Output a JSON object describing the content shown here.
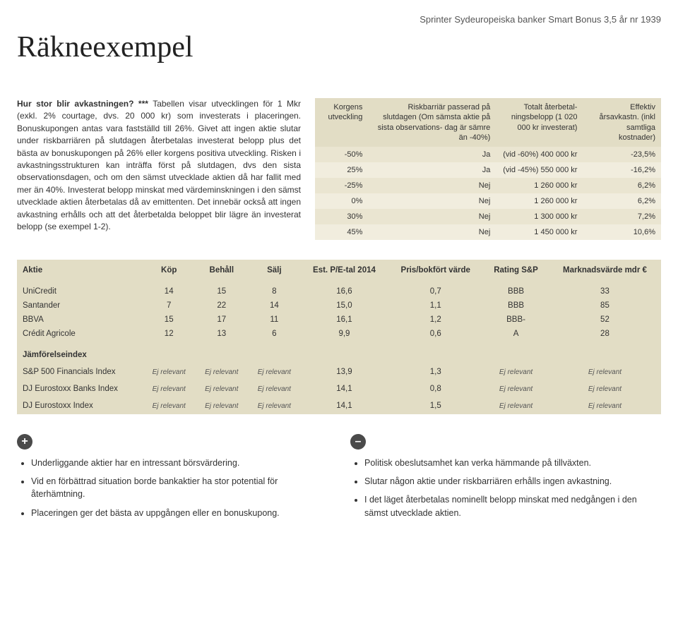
{
  "header_tag": "Sprinter Sydeuropeiska banker Smart Bonus 3,5 år nr 1939",
  "title": "Räkneexempel",
  "intro": {
    "heading": "Hur stor blir avkastningen? ***",
    "body": "Tabellen visar utvecklingen för 1 Mkr (exkl. 2% courtage, dvs. 20 000 kr) som investerats i placeringen. Bonuskupongen antas vara fastställd till 26%. Givet att ingen aktie slutar under riskbarriären på slutdagen återbetalas investerat belopp plus det bästa av bonuskupongen på 26% eller korgens positiva utveckling. Risken i avkastningsstrukturen kan inträffa först på slutdagen, dvs den sista observationsdagen, och om den sämst utvecklade aktien då har fallit med mer än 40%. Investerat belopp minskat med värdeminskningen i den sämst utvecklade aktien återbetalas då av emittenten. Det innebär också att ingen avkastning erhålls och att det återbetalda beloppet blir lägre än investerat belopp (se exempel 1-2)."
  },
  "yield_table": {
    "headers": {
      "c1": "Korgens utveckling",
      "c2": "Riskbarriär passerad på slutdagen (Om sämsta aktie på sista observations- dag är sämre än -40%)",
      "c3": "Totalt återbetal- ningsbelopp (1 020 000 kr investerat)",
      "c4": "Effektiv årsavkastn. (inkl samtliga kostnader)"
    },
    "rows": [
      {
        "c1": "-50%",
        "c2": "Ja",
        "c3": "(vid -60%) 400 000 kr",
        "c4": "-23,5%"
      },
      {
        "c1": "25%",
        "c2": "Ja",
        "c3": "(vid -45%) 550 000 kr",
        "c4": "-16,2%"
      },
      {
        "c1": "-25%",
        "c2": "Nej",
        "c3": "1 260 000 kr",
        "c4": "6,2%"
      },
      {
        "c1": "0%",
        "c2": "Nej",
        "c3": "1 260 000 kr",
        "c4": "6,2%"
      },
      {
        "c1": "30%",
        "c2": "Nej",
        "c3": "1 300 000 kr",
        "c4": "7,2%"
      },
      {
        "c1": "45%",
        "c2": "Nej",
        "c3": "1 450 000 kr",
        "c4": "10,6%"
      }
    ]
  },
  "stocks": {
    "headers": {
      "c1": "Aktie",
      "c2": "Köp",
      "c3": "Behåll",
      "c4": "Sälj",
      "c5": "Est. P/E-tal 2014",
      "c6": "Pris/bokfört värde",
      "c7": "Rating S&P",
      "c8": "Marknadsvärde mdr €"
    },
    "rows": [
      {
        "name": "UniCredit",
        "c2": "14",
        "c3": "15",
        "c4": "8",
        "c5": "16,6",
        "c6": "0,7",
        "c7": "BBB",
        "c8": "33"
      },
      {
        "name": "Santander",
        "c2": "7",
        "c3": "22",
        "c4": "14",
        "c5": "15,0",
        "c6": "1,1",
        "c7": "BBB",
        "c8": "85"
      },
      {
        "name": "BBVA",
        "c2": "15",
        "c3": "17",
        "c4": "11",
        "c5": "16,1",
        "c6": "1,2",
        "c7": "BBB-",
        "c8": "52"
      },
      {
        "name": "Crédit Agricole",
        "c2": "12",
        "c3": "13",
        "c4": "6",
        "c5": "9,9",
        "c6": "0,6",
        "c7": "A",
        "c8": "28"
      }
    ],
    "index_heading": "Jämförelseindex",
    "ej": "Ej relevant",
    "index_rows": [
      {
        "name": "S&P 500 Financials Index",
        "c5": "13,9",
        "c6": "1,3"
      },
      {
        "name": "DJ Eurostoxx Banks Index",
        "c5": "14,1",
        "c6": "0,8"
      },
      {
        "name": "DJ Eurostoxx Index",
        "c5": "14,1",
        "c6": "1,5"
      }
    ]
  },
  "pros": [
    "Underliggande aktier har en intressant börsvärdering.",
    "Vid en förbättrad situation borde bankaktier ha stor potential för återhämtning.",
    "Placeringen ger det bästa av uppgången eller en bonuskupong."
  ],
  "cons": [
    "Politisk obeslutsamhet kan verka hämmande på tillväxten.",
    "Slutar någon aktie under riskbarriären erhålls ingen avkastning.",
    "I det läget återbetalas nominellt belopp minskat med nedgången i den sämst utvecklade aktien."
  ],
  "plus": "+",
  "minus": "–"
}
